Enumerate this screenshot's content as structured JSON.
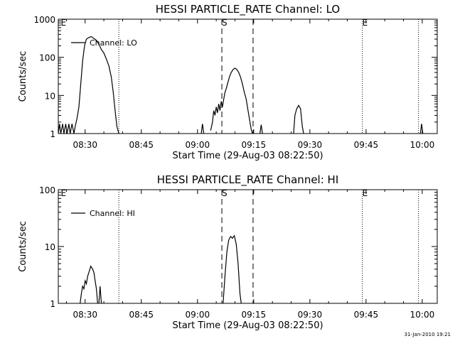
{
  "chart_data": [
    {
      "type": "line",
      "title": "HESSI PARTICLE_RATE Channel: LO",
      "xlabel": "Start Time (29-Aug-03 08:22:50)",
      "ylabel": "Counts/sec",
      "yscale": "log",
      "ylim": [
        1,
        1000
      ],
      "xlim": [
        "08:22:50",
        "10:04:00"
      ],
      "xticks": [
        "08:30",
        "08:45",
        "09:00",
        "09:15",
        "09:30",
        "09:45",
        "10:00"
      ],
      "yticks": [
        "1",
        "10",
        "100",
        "1000"
      ],
      "legend": {
        "position": "top-left",
        "entries": [
          "Channel: LO"
        ]
      },
      "markers": {
        "dotted": [
          "08:39:00",
          "09:44:00",
          "09:59:00"
        ],
        "dashed": [
          "09:06:30",
          "09:14:50"
        ],
        "letters": [
          {
            "text": "E",
            "time": "08:23:30"
          },
          {
            "text": "S",
            "time": "09:06:30"
          },
          {
            "text": "E",
            "time": "09:44:00"
          }
        ]
      },
      "series": [
        {
          "name": "Channel: LO",
          "segments": [
            [
              [
                "08:22:50",
                1
              ],
              [
                "08:23:10",
                1.8
              ],
              [
                "08:23:30",
                1
              ],
              [
                "08:24:00",
                1.8
              ],
              [
                "08:24:20",
                1
              ],
              [
                "08:24:50",
                1.8
              ],
              [
                "08:25:10",
                1
              ],
              [
                "08:25:40",
                1.8
              ],
              [
                "08:26:00",
                1
              ],
              [
                "08:26:30",
                1.8
              ],
              [
                "08:27:00",
                1
              ],
              [
                "08:27:20",
                1.5
              ],
              [
                "08:27:50",
                2.5
              ],
              [
                "08:28:20",
                5
              ],
              [
                "08:28:50",
                20
              ],
              [
                "08:29:20",
                80
              ],
              [
                "08:29:50",
                200
              ],
              [
                "08:30:20",
                300
              ],
              [
                "08:31:00",
                330
              ],
              [
                "08:31:40",
                350
              ],
              [
                "08:32:20",
                310
              ],
              [
                "08:33:00",
                280
              ],
              [
                "08:33:40",
                220
              ],
              [
                "08:34:20",
                160
              ],
              [
                "08:35:00",
                130
              ],
              [
                "08:35:40",
                90
              ],
              [
                "08:36:20",
                60
              ],
              [
                "08:37:00",
                30
              ],
              [
                "08:37:30",
                12
              ],
              [
                "08:38:00",
                4
              ],
              [
                "08:38:30",
                1.5
              ],
              [
                "08:39:00",
                1
              ]
            ],
            [
              [
                "09:01:00",
                1
              ],
              [
                "09:01:20",
                1.8
              ],
              [
                "09:01:40",
                1
              ]
            ],
            [
              [
                "09:03:30",
                1.2
              ],
              [
                "09:04:00",
                2
              ],
              [
                "09:04:20",
                4
              ],
              [
                "09:04:40",
                3
              ],
              [
                "09:05:00",
                5
              ],
              [
                "09:05:20",
                3.5
              ],
              [
                "09:05:40",
                6
              ],
              [
                "09:06:00",
                4
              ],
              [
                "09:06:20",
                7
              ],
              [
                "09:06:40",
                5
              ],
              [
                "09:07:00",
                8
              ],
              [
                "09:07:20",
                12
              ],
              [
                "09:07:40",
                15
              ],
              [
                "09:08:00",
                20
              ],
              [
                "09:08:30",
                30
              ],
              [
                "09:09:00",
                40
              ],
              [
                "09:09:30",
                48
              ],
              [
                "09:10:00",
                52
              ],
              [
                "09:10:30",
                48
              ],
              [
                "09:11:00",
                40
              ],
              [
                "09:11:30",
                30
              ],
              [
                "09:12:00",
                20
              ],
              [
                "09:12:30",
                12
              ],
              [
                "09:13:00",
                8
              ],
              [
                "09:13:30",
                4
              ],
              [
                "09:14:00",
                2
              ],
              [
                "09:14:20",
                1.3
              ],
              [
                "09:14:40",
                1
              ]
            ],
            [
              [
                "09:16:40",
                1
              ],
              [
                "09:17:00",
                1.7
              ],
              [
                "09:17:20",
                1
              ]
            ],
            [
              [
                "09:25:40",
                1
              ],
              [
                "09:26:00",
                3
              ],
              [
                "09:26:30",
                4.5
              ],
              [
                "09:27:00",
                5.5
              ],
              [
                "09:27:30",
                4.5
              ],
              [
                "09:28:00",
                1.5
              ],
              [
                "09:28:20",
                1
              ]
            ],
            [
              [
                "09:59:30",
                1
              ],
              [
                "09:59:50",
                1.8
              ],
              [
                "10:00:10",
                1
              ]
            ]
          ]
        }
      ]
    },
    {
      "type": "line",
      "title": "HESSI PARTICLE_RATE Channel: HI",
      "xlabel": "Start Time (29-Aug-03 08:22:50)",
      "ylabel": "Counts/sec",
      "yscale": "log",
      "ylim": [
        1,
        100
      ],
      "xlim": [
        "08:22:50",
        "10:04:00"
      ],
      "xticks": [
        "08:30",
        "08:45",
        "09:00",
        "09:15",
        "09:30",
        "09:45",
        "10:00"
      ],
      "yticks": [
        "1",
        "10",
        "100"
      ],
      "legend": {
        "position": "top-left",
        "entries": [
          "Channel: HI"
        ]
      },
      "markers": {
        "dotted": [
          "08:39:00",
          "09:44:00",
          "09:59:00"
        ],
        "dashed": [
          "09:06:30",
          "09:14:50"
        ],
        "letters": [
          {
            "text": "E",
            "time": "08:23:30"
          },
          {
            "text": "S",
            "time": "09:06:30"
          },
          {
            "text": "E",
            "time": "09:44:00"
          }
        ]
      },
      "series": [
        {
          "name": "Channel: HI",
          "segments": [
            [
              [
                "08:28:40",
                1
              ],
              [
                "08:29:00",
                1.5
              ],
              [
                "08:29:20",
                2
              ],
              [
                "08:29:40",
                1.8
              ],
              [
                "08:30:00",
                2.5
              ],
              [
                "08:30:20",
                2.2
              ],
              [
                "08:30:40",
                3
              ],
              [
                "08:31:00",
                3.5
              ],
              [
                "08:31:30",
                4.5
              ],
              [
                "08:32:00",
                4
              ],
              [
                "08:32:20",
                3.5
              ],
              [
                "08:32:40",
                2.5
              ],
              [
                "08:33:00",
                1.8
              ],
              [
                "08:33:20",
                1
              ]
            ],
            [
              [
                "08:33:40",
                1
              ],
              [
                "08:34:00",
                2
              ],
              [
                "08:34:20",
                1
              ]
            ],
            [
              [
                "09:06:50",
                1
              ],
              [
                "09:07:20",
                3
              ],
              [
                "09:07:50",
                8
              ],
              [
                "09:08:20",
                13
              ],
              [
                "09:08:50",
                15
              ],
              [
                "09:09:20",
                14
              ],
              [
                "09:09:50",
                15.5
              ],
              [
                "09:10:20",
                11
              ],
              [
                "09:10:50",
                5
              ],
              [
                "09:11:20",
                1.5
              ],
              [
                "09:11:40",
                1
              ]
            ]
          ]
        }
      ]
    }
  ],
  "timestamp": "31-Jan-2010 19:21"
}
